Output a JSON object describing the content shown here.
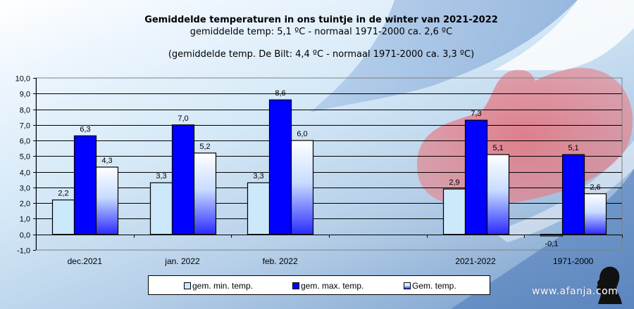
{
  "colors": {
    "min": "#cce8fb",
    "max": "#0000ff",
    "avg_top": "#ffffff",
    "avg_mid": "#c8dcff",
    "avg_bottom": "#2a2aff",
    "grid": "#000000"
  },
  "watermark": "www.afanja.com",
  "chart_data": {
    "type": "bar",
    "title": "Gemiddelde temperaturen in ons tuintje in de winter van 2021-2022",
    "subtitle": "gemiddelde  temp: 5,1 ºC - normaal  1971-2000  ca. 2,6 ºC",
    "subtitle2": "(gemiddelde  temp. De Bilt: 4,4 ºC - normaal  1971-2000  ca. 3,3 ºC)",
    "xlabel": "",
    "ylabel": "",
    "ylim": [
      -1,
      10
    ],
    "yticks": [
      "-1,0",
      "0,0",
      "1,0",
      "2,0",
      "3,0",
      "4,0",
      "5,0",
      "6,0",
      "7,0",
      "8,0",
      "9,0",
      "10,0"
    ],
    "grid": true,
    "legend_position": "bottom",
    "categories": [
      "dec.2021",
      "jan. 2022",
      "feb. 2022",
      "",
      "2021-2022",
      "1971-2000"
    ],
    "series": [
      {
        "name": "gem. min. temp.",
        "values": [
          2.2,
          3.3,
          3.3,
          null,
          2.9,
          -0.1
        ],
        "labels": [
          "2,2",
          "3,3",
          "3,3",
          "",
          "2,9",
          "-0,1"
        ]
      },
      {
        "name": "gem. max. temp.",
        "values": [
          6.3,
          7.0,
          8.6,
          null,
          7.3,
          5.1
        ],
        "labels": [
          "6,3",
          "7,0",
          "8,6",
          "",
          "7,3",
          "5,1"
        ]
      },
      {
        "name": "Gem. temp.",
        "values": [
          4.3,
          5.2,
          6.0,
          null,
          5.1,
          2.6
        ],
        "labels": [
          "4,3",
          "5,2",
          "6,0",
          "",
          "5,1",
          "2,6"
        ]
      }
    ]
  }
}
